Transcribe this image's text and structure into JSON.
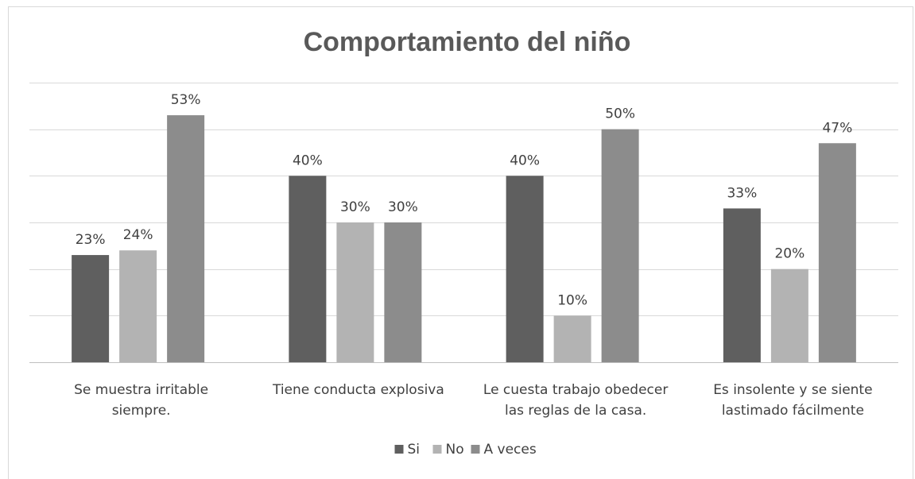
{
  "chart_data": {
    "type": "bar",
    "title": "Comportamiento del niño",
    "xlabel": "",
    "ylabel": "",
    "ylim": [
      0,
      0.6
    ],
    "grid": true,
    "legend_position": "bottom",
    "categories": [
      [
        "Se muestra irritable",
        "siempre."
      ],
      [
        "Tiene conducta explosiva"
      ],
      [
        "Le cuesta trabajo obedecer",
        "las reglas de la casa."
      ],
      [
        "Es insolente y se siente",
        "lastimado fácilmente"
      ]
    ],
    "series": [
      {
        "name": "Si",
        "color": "#5f5f5f",
        "values": [
          0.23,
          0.4,
          0.4,
          0.33
        ],
        "labels": [
          "23%",
          "40%",
          "40%",
          "33%"
        ]
      },
      {
        "name": "No",
        "color": "#b3b3b3",
        "values": [
          0.24,
          0.3,
          0.1,
          0.2
        ],
        "labels": [
          "24%",
          "30%",
          "10%",
          "20%"
        ]
      },
      {
        "name": "A veces",
        "color": "#8c8c8c",
        "values": [
          0.53,
          0.3,
          0.5,
          0.47
        ],
        "labels": [
          "53%",
          "30%",
          "50%",
          "47%"
        ]
      }
    ]
  }
}
